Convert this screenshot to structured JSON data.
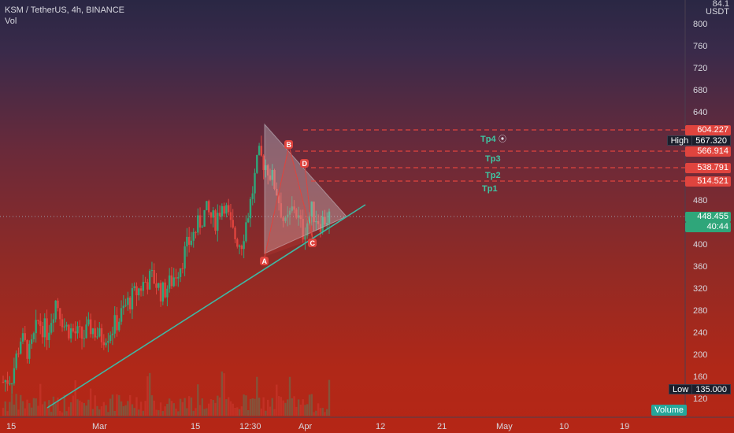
{
  "header": {
    "symbol_line": "KSM / TetherUS, 4h, BINANCE",
    "vol_label": "Vol"
  },
  "price_axis": {
    "unit_line1": "84.1",
    "unit_line2": "USDT",
    "ticks": [
      "800",
      "760",
      "720",
      "680",
      "640",
      "480",
      "400",
      "360",
      "320",
      "280",
      "240",
      "200",
      "160",
      "120"
    ]
  },
  "time_axis": {
    "ticks": [
      "15",
      "Mar",
      "15",
      "12:30",
      "Apr",
      "12",
      "21",
      "May",
      "10",
      "19"
    ]
  },
  "tags": {
    "tp4_price": "604.227",
    "high_key": "High",
    "high_value": "567.320",
    "tp3_price": "566.914",
    "tp2_price": "538.791",
    "tp1_price": "514.521",
    "last_price": "448.455",
    "countdown": "40:44",
    "low_key": "Low",
    "low_value": "135.000",
    "volume_label": "Volume"
  },
  "annotations": {
    "tp4": "Tp4",
    "tp3": "Tp3",
    "tp2": "Tp2",
    "tp1": "Tp1",
    "point_a": "A",
    "point_b": "B",
    "point_c": "C",
    "point_d": "D"
  },
  "colors": {
    "up": "#2fa67a",
    "down": "#e0443e",
    "trendline": "#3fb8a4",
    "target_line": "#e0443e",
    "triangle_fill": "#c8c8d0"
  },
  "chart_data": {
    "type": "line",
    "title": "KSM / TetherUS, 4h, BINANCE",
    "xlabel": "",
    "ylabel": "",
    "ylim": [
      100,
      840
    ],
    "series": [
      {
        "values": [
          150,
          160,
          230,
          200,
          260,
          240,
          300,
          250,
          240,
          230,
          250,
          230,
          240,
          260,
          290,
          310,
          330,
          340,
          310,
          330,
          360,
          400,
          430,
          460,
          440,
          480,
          420,
          400,
          470,
          560,
          540,
          500,
          430,
          470,
          420,
          460,
          440,
          450
        ]
      }
    ],
    "levels": [
      {
        "label": "Tp4",
        "price": 604.227
      },
      {
        "label": "Tp3",
        "price": 566.914
      },
      {
        "label": "Tp2",
        "price": 538.791
      },
      {
        "label": "Tp1",
        "price": 514.521
      }
    ],
    "high": 567.32,
    "low": 135.0,
    "last": 448.455
  }
}
